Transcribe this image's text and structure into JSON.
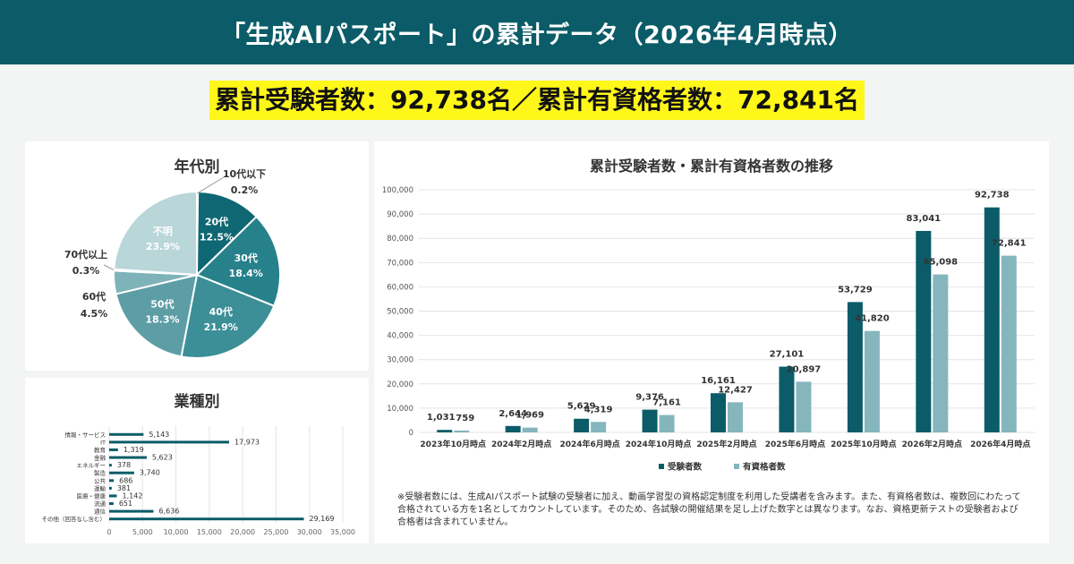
{
  "header": {
    "title": "「生成AIパスポート」の累計データ（2026年4月時点）"
  },
  "summary": {
    "text": "累計受験者数：92,738名／累計有資格者数：72,841名"
  },
  "age_chart_title": "年代別",
  "industry_chart_title": "業種別",
  "trend_chart_title": "累計受験者数・累計有資格者数の推移",
  "footnote": "※受験者数には、生成AIパスポート試験の受験者に加え、動画学習型の資格認定制度を利用した受講者を含みます。また、有資格者数は、複数回にわたって合格されている方を1名としてカウントしています。そのため、各試験の開催結果を足し上げた数字とは異なります。なお、資格更新テストの受験者および合格者は含まれていません。",
  "colors": {
    "header_bg": "#0b5c68",
    "highlight": "#fff71a",
    "series_examinees": "#0b5c68",
    "series_qualified": "#85b6bd"
  },
  "chart_data": [
    {
      "type": "pie",
      "title": "年代別",
      "labels": [
        "10代以下",
        "20代",
        "30代",
        "40代",
        "50代",
        "60代",
        "70代以上",
        "不明"
      ],
      "values": [
        0.2,
        12.5,
        18.4,
        21.9,
        18.3,
        4.5,
        0.3,
        23.9
      ],
      "value_labels": [
        "0.2%",
        "12.5%",
        "18.4%",
        "21.9%",
        "18.3%",
        "4.5%",
        "0.3%",
        "23.9%"
      ],
      "colors": [
        "#0b5c68",
        "#0f6773",
        "#27818b",
        "#3c8e97",
        "#5d9ea6",
        "#7eb3b9",
        "#9fc7cb",
        "#b9d6d9"
      ]
    },
    {
      "type": "bar",
      "orientation": "horizontal",
      "title": "業種別",
      "categories": [
        "情報・サービス",
        "IT",
        "教育",
        "金融",
        "エネルギー",
        "製造",
        "公共",
        "運輸",
        "医療・健康",
        "流通",
        "通信",
        "その他（回答なし含む）"
      ],
      "values": [
        5143,
        17973,
        1319,
        5623,
        378,
        3740,
        686,
        381,
        1142,
        651,
        6636,
        29169
      ],
      "value_labels": [
        "5,143",
        "17,973",
        "1,319",
        "5,623",
        "378",
        "3,740",
        "686",
        "381",
        "1,142",
        "651",
        "6,636",
        "29,169"
      ],
      "xlim": [
        0,
        35000
      ],
      "xticks": [
        "0",
        "5,000",
        "10,000",
        "15,000",
        "20,000",
        "25,000",
        "30,000",
        "35,000"
      ],
      "grid": true
    },
    {
      "type": "bar",
      "title": "累計受験者数・累計有資格者数の推移",
      "categories": [
        "2023年10月時点",
        "2024年2月時点",
        "2024年6月時点",
        "2024年10月時点",
        "2025年2月時点",
        "2025年6月時点",
        "2025年10月時点",
        "2026年2月時点",
        "2026年4月時点"
      ],
      "series": [
        {
          "name": "受験者数",
          "values": [
            1031,
            2644,
            5629,
            9376,
            16161,
            27101,
            53729,
            83041,
            92738
          ],
          "labels": [
            "1,031",
            "2,644",
            "5,629",
            "9,376",
            "16,161",
            "27,101",
            "53,729",
            "83,041",
            "92,738"
          ]
        },
        {
          "name": "有資格者数",
          "values": [
            759,
            1969,
            4319,
            7161,
            12427,
            20897,
            41820,
            65098,
            72841
          ],
          "labels": [
            "759",
            "1,969",
            "4,319",
            "7,161",
            "12,427",
            "20,897",
            "41,820",
            "65,098",
            "72,841"
          ]
        }
      ],
      "ylim": [
        0,
        100000
      ],
      "yticks": [
        "0",
        "10,000",
        "20,000",
        "30,000",
        "40,000",
        "50,000",
        "60,000",
        "70,000",
        "80,000",
        "90,000",
        "100,000"
      ],
      "grid": true,
      "legend": "bottom"
    }
  ]
}
